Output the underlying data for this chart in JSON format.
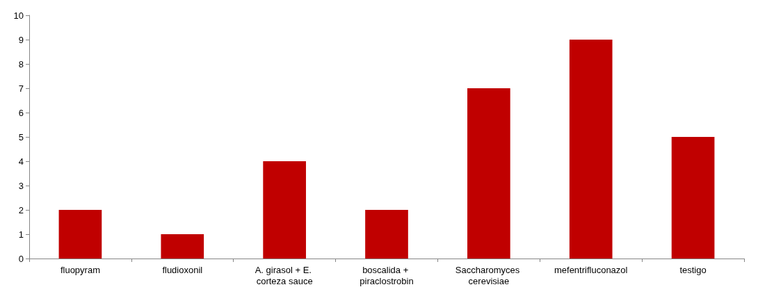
{
  "chart_data": {
    "type": "bar",
    "categories": [
      "fluopyram",
      "fludioxonil",
      "A. girasol + E. corteza sauce",
      "boscalida + piraclostrobin",
      "Saccharomyces cerevisiae",
      "mefentrifluconazol",
      "testigo"
    ],
    "values": [
      2,
      1,
      4,
      2,
      7,
      9,
      5
    ],
    "color": "#c00000",
    "ylim": [
      0,
      10
    ],
    "yticks": [
      0,
      1,
      2,
      3,
      4,
      5,
      6,
      7,
      8,
      9,
      10
    ],
    "grid": false
  }
}
